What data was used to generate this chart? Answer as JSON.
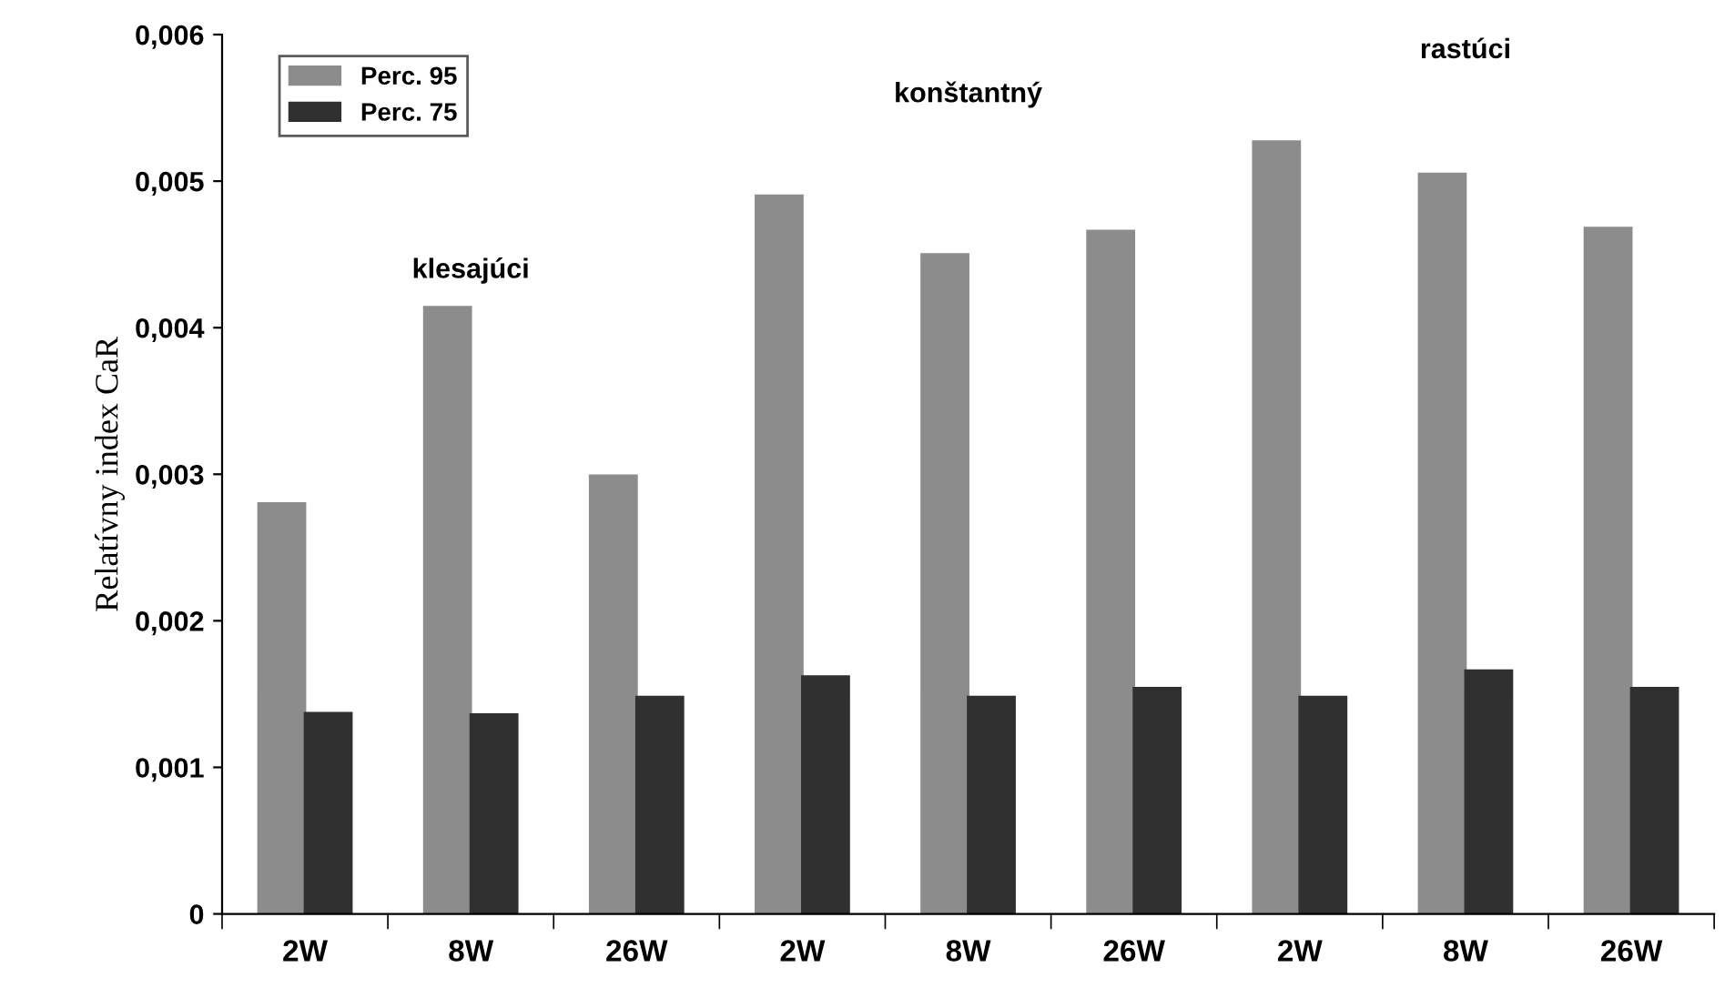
{
  "chart_data": {
    "type": "bar",
    "ylabel": "Relatívny index CaR",
    "categories": [
      "2W",
      "8W",
      "26W",
      "2W",
      "8W",
      "26W",
      "2W",
      "8W",
      "26W"
    ],
    "series": [
      {
        "name": "Perc. 95",
        "color": "#8c8c8c",
        "values": [
          0.0028,
          0.00414,
          0.00299,
          0.0049,
          0.0045,
          0.00466,
          0.00527,
          0.00505,
          0.00468
        ]
      },
      {
        "name": "Perc. 75",
        "color": "#303030",
        "values": [
          0.00137,
          0.00136,
          0.00148,
          0.00162,
          0.00148,
          0.00154,
          0.00148,
          0.00166,
          0.00154
        ]
      }
    ],
    "ylim": [
      0,
      0.006
    ],
    "yticks": [
      0,
      {
        "value": 0.001,
        "label": "0,001"
      },
      {
        "value": 0.002,
        "label": "0,002"
      },
      {
        "value": 0.003,
        "label": "0,003"
      },
      {
        "value": 0.004,
        "label": "0,004"
      },
      {
        "value": 0.005,
        "label": "0,005"
      },
      {
        "value": 0.006,
        "label": "0,006"
      }
    ],
    "annotations": [
      "klesajúci",
      "konštantný",
      "rastúci"
    ],
    "legend": "top left",
    "grid": false
  }
}
